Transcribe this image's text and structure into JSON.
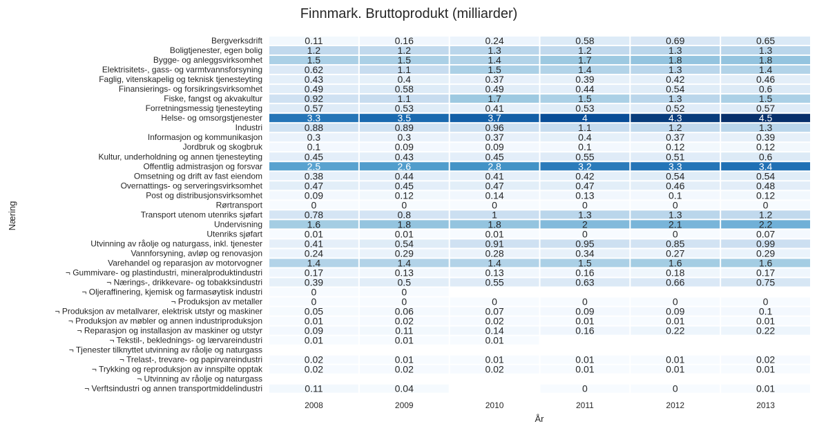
{
  "chart_data": {
    "type": "heatmap",
    "title": "Finnmark. Bruttoprodukt (milliarder)",
    "xlabel": "År",
    "ylabel": "Næring",
    "colormap": "Blues",
    "value_range": [
      0,
      4.5
    ],
    "grid": false,
    "legend": "none",
    "columns": [
      "2008",
      "2009",
      "2010",
      "2011",
      "2012",
      "2013"
    ],
    "rows": [
      "Bergverksdrift",
      "Boligtjenester, egen bolig",
      "Bygge- og anleggsvirksomhet",
      "Elektrisitets-, gass- og varmtvannsforsyning",
      "Faglig, vitenskapelig og teknisk tjenesteyting",
      "Finansierings- og forsikringsvirksomhet",
      "Fiske, fangst og akvakultur",
      "Forretningsmessig tjenesteyting",
      "Helse- og omsorgstjenester",
      "Industri",
      "Informasjon og kommunikasjon",
      "Jordbruk og skogbruk",
      "Kultur, underholdning og annen tjenesteyting",
      "Offentlig admistrasjon og forsvar",
      "Omsetning og drift av fast eiendom",
      "Overnattings- og serveringsvirksomhet",
      "Post og distribusjonsvirksomhet",
      "Rørtransport",
      "Transport utenom utenriks sjøfart",
      "Undervisning",
      "Utenriks sjøfart",
      "Utvinning av råolje og naturgass, inkl. tjenester",
      "Vannforsyning, avløp og renovasjon",
      "Varehandel og reparasjon av motorvogner",
      "¬ Gummivare- og plastindustri, mineralproduktindustri",
      "¬ Nærings-, drikkevare- og tobakksindustri",
      "¬ Oljeraffinering, kjemisk og farmasøytisk industri",
      "¬ Produksjon av metaller",
      "¬ Produksjon av metallvarer, elektrisk utstyr og maskiner",
      "¬ Produksjon av møbler og annen industriproduksjon",
      "¬ Reparasjon og installasjon av maskiner og utstyr",
      "¬ Tekstil-, beklednings- og lærvareindustri",
      "¬ Tjenester tilknyttet utvinning av råolje og naturgass",
      "¬ Trelast-, trevare- og papirvareindustri",
      "¬ Trykking og reproduksjon av innspilte opptak",
      "¬ Utvinning av råolje og naturgass",
      "¬ Verftsindustri og annen transportmiddelindustri"
    ],
    "values": [
      [
        0.11,
        0.16,
        0.24,
        0.58,
        0.69,
        0.65
      ],
      [
        1.2,
        1.2,
        1.3,
        1.2,
        1.3,
        1.3
      ],
      [
        1.5,
        1.5,
        1.4,
        1.7,
        1.8,
        1.8
      ],
      [
        0.62,
        1.1,
        1.5,
        1.4,
        1.3,
        1.4
      ],
      [
        0.43,
        0.4,
        0.37,
        0.39,
        0.42,
        0.46
      ],
      [
        0.49,
        0.58,
        0.49,
        0.44,
        0.54,
        0.6
      ],
      [
        0.92,
        1.1,
        1.7,
        1.5,
        1.3,
        1.5
      ],
      [
        0.57,
        0.53,
        0.41,
        0.53,
        0.52,
        0.57
      ],
      [
        3.3,
        3.5,
        3.7,
        4,
        4.3,
        4.5
      ],
      [
        0.88,
        0.89,
        0.96,
        1.1,
        1.2,
        1.3
      ],
      [
        0.3,
        0.3,
        0.37,
        0.4,
        0.37,
        0.39
      ],
      [
        0.1,
        0.09,
        0.09,
        0.1,
        0.12,
        0.12
      ],
      [
        0.45,
        0.43,
        0.45,
        0.55,
        0.51,
        0.6
      ],
      [
        2.5,
        2.6,
        2.8,
        3.2,
        3.3,
        3.4
      ],
      [
        0.38,
        0.44,
        0.41,
        0.42,
        0.54,
        0.54
      ],
      [
        0.47,
        0.45,
        0.47,
        0.47,
        0.46,
        0.48
      ],
      [
        0.09,
        0.12,
        0.14,
        0.13,
        0.1,
        0.12
      ],
      [
        0,
        0,
        0,
        0,
        0,
        0
      ],
      [
        0.78,
        0.8,
        1,
        1.3,
        1.3,
        1.2
      ],
      [
        1.6,
        1.8,
        1.8,
        2,
        2.1,
        2.2
      ],
      [
        0.01,
        0.01,
        0.01,
        0,
        0,
        0.07
      ],
      [
        0.41,
        0.54,
        0.91,
        0.95,
        0.85,
        0.99
      ],
      [
        0.24,
        0.29,
        0.28,
        0.34,
        0.27,
        0.29
      ],
      [
        1.4,
        1.4,
        1.4,
        1.5,
        1.6,
        1.6
      ],
      [
        0.17,
        0.13,
        0.13,
        0.16,
        0.18,
        0.17
      ],
      [
        0.39,
        0.5,
        0.55,
        0.63,
        0.66,
        0.75
      ],
      [
        0,
        0,
        null,
        null,
        null,
        null
      ],
      [
        0,
        0,
        0,
        0,
        0,
        0
      ],
      [
        0.05,
        0.06,
        0.07,
        0.09,
        0.09,
        0.1
      ],
      [
        0.01,
        0.02,
        0.02,
        0.01,
        0.01,
        0.01
      ],
      [
        0.09,
        0.11,
        0.14,
        0.16,
        0.22,
        0.22
      ],
      [
        0.01,
        0.01,
        0.01,
        null,
        null,
        null
      ],
      [
        null,
        null,
        null,
        null,
        null,
        null
      ],
      [
        0.02,
        0.01,
        0.01,
        0.01,
        0.01,
        0.02
      ],
      [
        0.02,
        0.02,
        0.02,
        0.01,
        0.01,
        0.01
      ],
      [
        null,
        null,
        null,
        null,
        null,
        null
      ],
      [
        0.11,
        0.04,
        null,
        0,
        0,
        0.01
      ]
    ]
  }
}
